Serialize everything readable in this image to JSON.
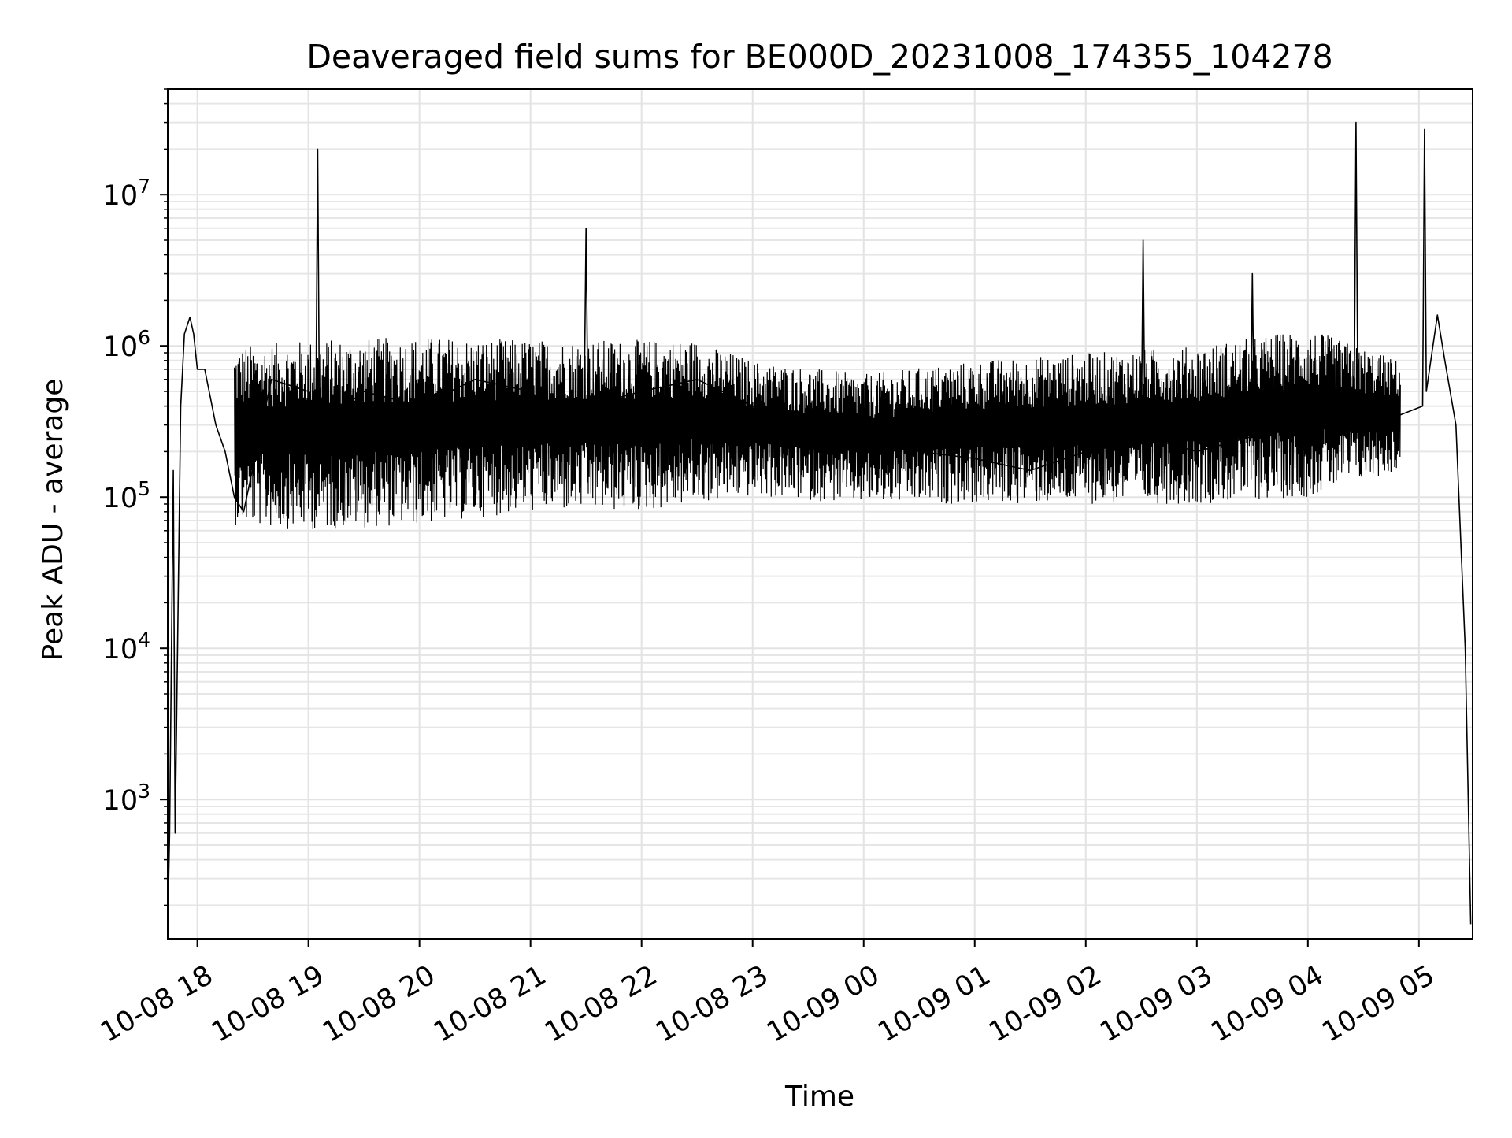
{
  "chart_data": {
    "type": "line",
    "title": "Deaveraged field sums for BE000D_20231008_174355_104278",
    "xlabel": "Time",
    "ylabel": "Peak ADU - average",
    "yscale": "log",
    "ylim": [
      120,
      50000000
    ],
    "xlim": [
      "2023-10-08 17:44",
      "2023-10-09 05:29"
    ],
    "grid": true,
    "grid_minor": true,
    "line_color": "#000000",
    "x_tick_labels": [
      "10-08 18",
      "10-08 19",
      "10-08 20",
      "10-08 21",
      "10-08 22",
      "10-08 23",
      "10-09 00",
      "10-09 01",
      "10-09 02",
      "10-09 03",
      "10-09 04",
      "10-09 05"
    ],
    "x_tick_values": [
      "2023-10-08 18:00",
      "2023-10-08 19:00",
      "2023-10-08 20:00",
      "2023-10-08 21:00",
      "2023-10-08 22:00",
      "2023-10-08 23:00",
      "2023-10-09 00:00",
      "2023-10-09 01:00",
      "2023-10-09 02:00",
      "2023-10-09 03:00",
      "2023-10-09 04:00",
      "2023-10-09 05:00"
    ],
    "y_tick_values": [
      1000,
      10000,
      100000,
      1000000,
      10000000
    ],
    "y_tick_labels": [
      {
        "base": "10",
        "exp": "3"
      },
      {
        "base": "10",
        "exp": "4"
      },
      {
        "base": "10",
        "exp": "5"
      },
      {
        "base": "10",
        "exp": "6"
      },
      {
        "base": "10",
        "exp": "7"
      }
    ],
    "series": [
      {
        "values_note": "",
        "x": [
          "2023-10-08 17:44",
          "2023-10-08 17:45",
          "2023-10-08 17:47",
          "2023-10-08 17:48",
          "2023-10-08 17:51",
          "2023-10-08 17:53",
          "2023-10-08 17:56",
          "2023-10-08 17:58",
          "2023-10-08 18:00",
          "2023-10-08 18:04",
          "2023-10-08 18:10",
          "2023-10-08 18:15",
          "2023-10-08 18:20",
          "2023-10-08 18:25",
          "2023-10-08 18:40",
          "2023-10-08 19:00",
          "2023-10-08 19:04",
          "2023-10-08 19:05",
          "2023-10-08 19:06",
          "2023-10-08 19:30",
          "2023-10-08 20:00",
          "2023-10-08 20:30",
          "2023-10-08 21:00",
          "2023-10-08 21:20",
          "2023-10-08 21:29",
          "2023-10-08 21:30",
          "2023-10-08 21:31",
          "2023-10-08 22:00",
          "2023-10-08 22:30",
          "2023-10-08 23:00",
          "2023-10-08 23:30",
          "2023-10-09 00:00",
          "2023-10-09 00:30",
          "2023-10-09 01:00",
          "2023-10-09 01:30",
          "2023-10-09 02:00",
          "2023-10-09 02:30",
          "2023-10-09 02:31",
          "2023-10-09 02:32",
          "2023-10-09 03:00",
          "2023-10-09 03:29",
          "2023-10-09 03:30",
          "2023-10-09 03:31",
          "2023-10-09 04:00",
          "2023-10-09 04:25",
          "2023-10-09 04:26",
          "2023-10-09 04:27",
          "2023-10-09 04:50",
          "2023-10-09 05:02",
          "2023-10-09 05:03",
          "2023-10-09 05:04",
          "2023-10-09 05:10",
          "2023-10-09 05:14",
          "2023-10-09 05:20",
          "2023-10-09 05:25",
          "2023-10-09 05:28"
        ],
        "y": [
          150,
          600,
          150000,
          600,
          400000,
          1200000,
          1550000,
          1200000,
          700000,
          700000,
          300000,
          200000,
          100000,
          80000,
          600000,
          500000,
          300000,
          20000000,
          300000,
          500000,
          400000,
          600000,
          500000,
          300000,
          400000,
          6000000,
          400000,
          500000,
          600000,
          400000,
          300000,
          250000,
          200000,
          180000,
          150000,
          200000,
          250000,
          5000000,
          250000,
          200000,
          250000,
          3000000,
          250000,
          300000,
          400000,
          30000000,
          400000,
          350000,
          400000,
          27000000,
          500000,
          1600000,
          800000,
          300000,
          10000,
          150
        ]
      }
    ]
  }
}
